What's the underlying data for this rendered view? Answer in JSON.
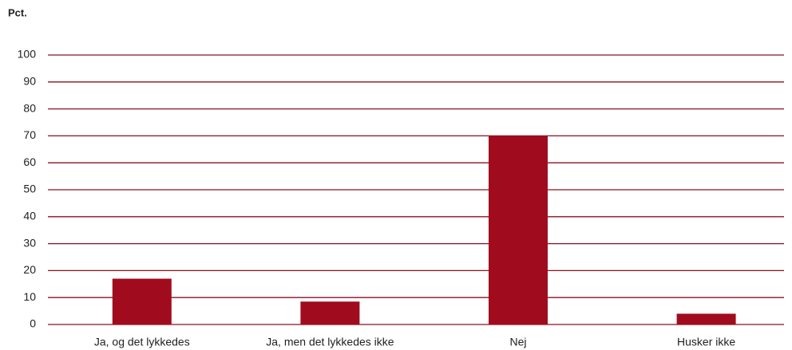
{
  "chart_data": {
    "type": "bar",
    "y_label": "Pct.",
    "categories": [
      "Ja, og det lykkedes",
      "Ja, men det lykkedes ikke",
      "Nej",
      "Husker ikke"
    ],
    "values": [
      17,
      8.5,
      70,
      4
    ],
    "color": "#a00c1e",
    "ylim": [
      0,
      100
    ],
    "yticks": [
      0,
      10,
      20,
      30,
      40,
      50,
      60,
      70,
      80,
      90,
      100
    ],
    "grid": true,
    "grid_color": "#8b1020"
  }
}
